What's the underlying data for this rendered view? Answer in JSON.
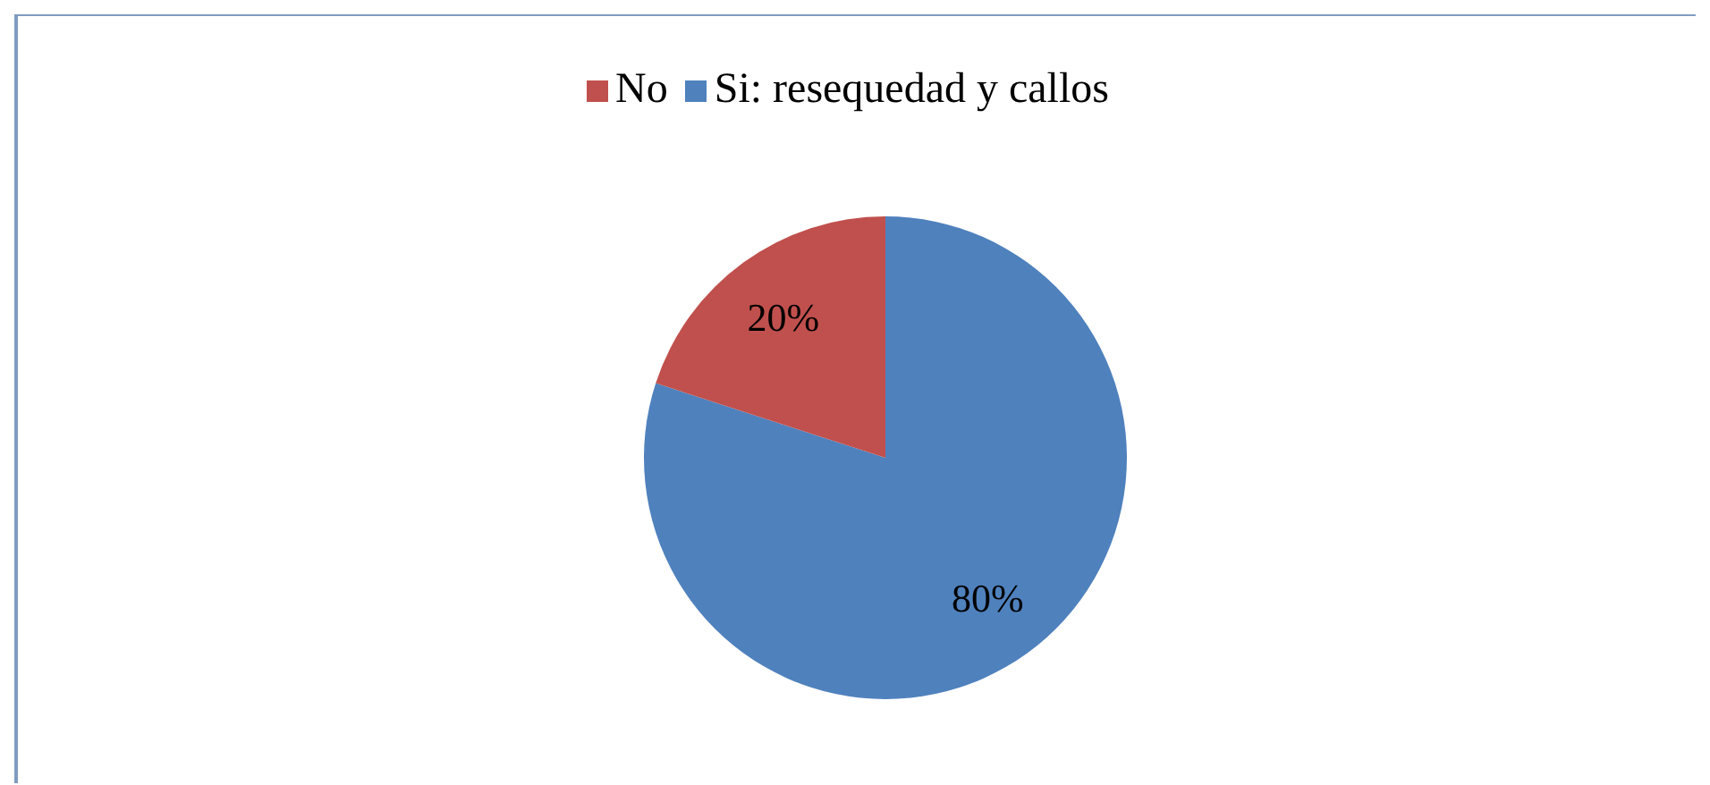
{
  "chart_data": {
    "type": "pie",
    "categories": [
      "Si: resequedad y callos",
      "No"
    ],
    "values": [
      80,
      20
    ],
    "colors": [
      "#4f81bd",
      "#c0504d"
    ],
    "value_labels": [
      "80%",
      "20%"
    ],
    "legend": "top"
  }
}
